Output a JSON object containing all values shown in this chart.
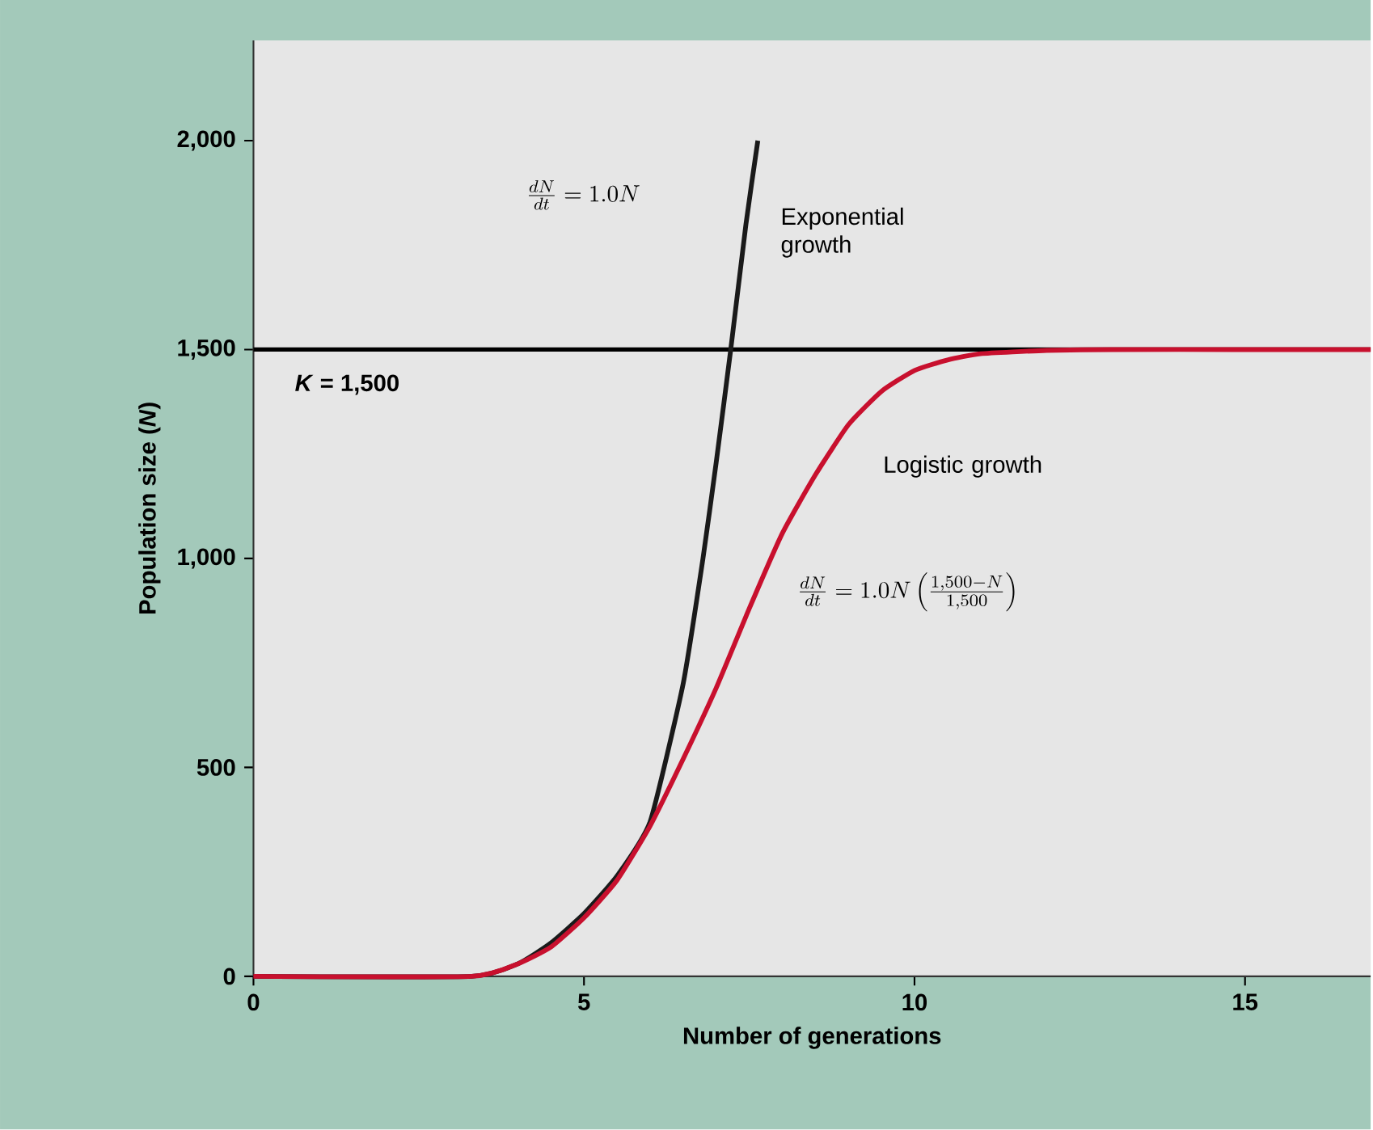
{
  "chart_data": {
    "type": "line",
    "xlabel": "Number of generations",
    "ylabel": "Population size (*N*)",
    "xlim": [
      0,
      16.9
    ],
    "ylim": [
      0,
      2240
    ],
    "xticks": [
      0,
      5,
      10,
      15
    ],
    "yticks": [
      0,
      500,
      {
        "value": 1000,
        "label": "1,000"
      },
      {
        "value": 1500,
        "label": "1,500"
      },
      {
        "value": 2000,
        "label": "2,000"
      }
    ],
    "marker": "none",
    "line_style": "solid",
    "legend": false,
    "series": [
      {
        "name": "Exponential growth",
        "color": "#1a1a1a",
        "x": [
          0,
          3.3,
          4,
          4.5,
          5,
          5.5,
          6,
          6.5,
          6.8,
          7.0,
          7.22,
          7.45,
          7.63
        ],
        "values": [
          0,
          0,
          30,
          80,
          150,
          240,
          370,
          700,
          1000,
          1230,
          1500,
          1800,
          2000
        ]
      },
      {
        "name": "Logistic growth",
        "color": "#c8102e",
        "x": [
          0,
          3.3,
          4,
          4.5,
          5,
          5.5,
          6,
          6.5,
          7,
          7.5,
          8,
          8.5,
          9,
          9.5,
          10,
          10.5,
          11,
          12,
          13,
          15,
          16.9
        ],
        "values": [
          0,
          0,
          30,
          70,
          140,
          230,
          360,
          520,
          690,
          880,
          1060,
          1200,
          1320,
          1400,
          1450,
          1475,
          1490,
          1498,
          1500,
          1500,
          1500
        ]
      }
    ],
    "ref_lines": [
      {
        "axis": "y",
        "value": 1500,
        "label": "*K* = 1,500",
        "color": "#000000"
      }
    ],
    "annotations": [
      "\\frac{dN}{dt} = 1.0N",
      "\\frac{dN}{dt} = 1.0N \\left(\\frac{1{,}500 - N}{1{,}500}\\right)"
    ]
  }
}
